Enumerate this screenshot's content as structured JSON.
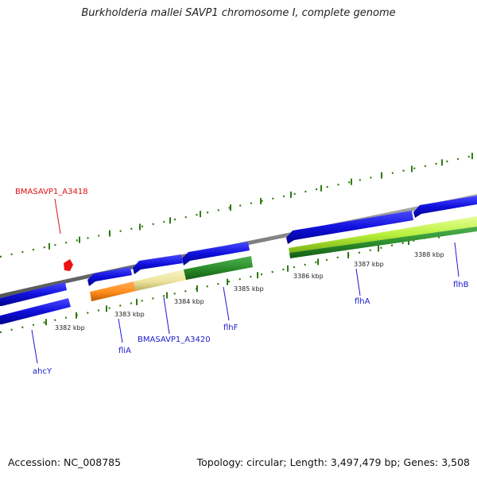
{
  "title": "Burkholderia mallei SAVP1 chromosome I, complete genome",
  "footer": {
    "accession": "Accession: NC_008785",
    "summary": "Topology: circular; Length: 3,497,479 bp; Genes: 3,508"
  },
  "colors": {
    "backbone": "#8a8a8a",
    "cds": "#1010dd",
    "orange": "#ff8c1a",
    "khaki": "#ece49c",
    "darkgreen": "#2d8f2d",
    "lightgreen": "#b8f03c",
    "scale_tick": "#2f7a10",
    "label_blue": "#1a1acc",
    "label_red": "#dd1111",
    "marker": "#ee1111"
  },
  "scale_labels": [
    "3382 kbp",
    "3383 kbp",
    "3384 kbp",
    "3385 kbp",
    "3386 kbp",
    "3387 kbp",
    "3388 kbp"
  ],
  "gene_labels": [
    {
      "text": "BMASAVP1_A3418",
      "color": "red"
    },
    {
      "text": "ahcY",
      "color": "blue"
    },
    {
      "text": "fliA",
      "color": "blue"
    },
    {
      "text": "BMASAVP1_A3420",
      "color": "blue"
    },
    {
      "text": "flhF",
      "color": "blue"
    },
    {
      "text": "flhA",
      "color": "blue"
    },
    {
      "text": "flhB",
      "color": "blue"
    }
  ]
}
